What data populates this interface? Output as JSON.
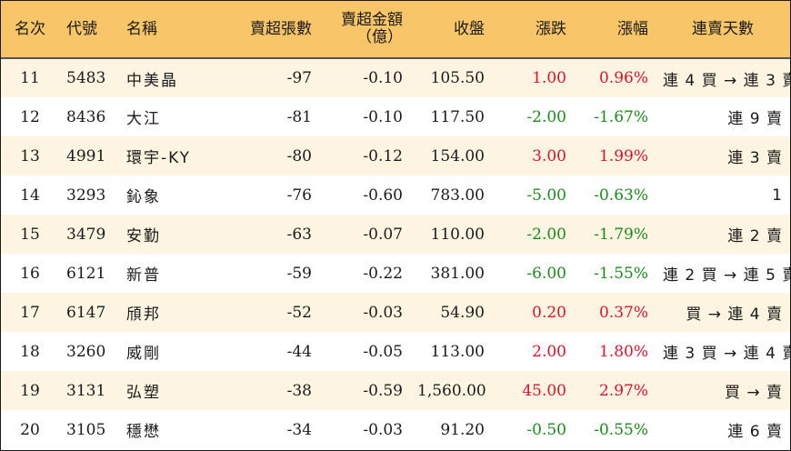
{
  "headers": {
    "rank": "名次",
    "code": "代號",
    "name": "名稱",
    "net_sell_lots": "賣超張數",
    "net_sell_amount_line1": "賣超金額",
    "net_sell_amount_line2": "（億）",
    "close": "收盤",
    "change": "漲跌",
    "change_pct": "漲幅",
    "streak": "連賣天數"
  },
  "colors": {
    "header_bg": "#f8c568",
    "row_alt_bg": "#fdf5e2",
    "up": "#e0102a",
    "down": "#1a8a1a"
  },
  "rows": [
    {
      "rank": "11",
      "code": "5483",
      "name": "中美晶",
      "net_sell_lots": "-97",
      "net_sell_amount": "-0.10",
      "close": "105.50",
      "change": "1.00",
      "change_pct": "0.96%",
      "direction": "up",
      "streak": "連 4 買 → 連 3 賣"
    },
    {
      "rank": "12",
      "code": "8436",
      "name": "大江",
      "net_sell_lots": "-81",
      "net_sell_amount": "-0.10",
      "close": "117.50",
      "change": "-2.00",
      "change_pct": "-1.67%",
      "direction": "down",
      "streak": "連 9 賣"
    },
    {
      "rank": "13",
      "code": "4991",
      "name": "環宇-KY",
      "net_sell_lots": "-80",
      "net_sell_amount": "-0.12",
      "close": "154.00",
      "change": "3.00",
      "change_pct": "1.99%",
      "direction": "up",
      "streak": "連 3 賣"
    },
    {
      "rank": "14",
      "code": "3293",
      "name": "鈊象",
      "net_sell_lots": "-76",
      "net_sell_amount": "-0.60",
      "close": "783.00",
      "change": "-5.00",
      "change_pct": "-0.63%",
      "direction": "down",
      "streak": "1"
    },
    {
      "rank": "15",
      "code": "3479",
      "name": "安勤",
      "net_sell_lots": "-63",
      "net_sell_amount": "-0.07",
      "close": "110.00",
      "change": "-2.00",
      "change_pct": "-1.79%",
      "direction": "down",
      "streak": "連 2 賣"
    },
    {
      "rank": "16",
      "code": "6121",
      "name": "新普",
      "net_sell_lots": "-59",
      "net_sell_amount": "-0.22",
      "close": "381.00",
      "change": "-6.00",
      "change_pct": "-1.55%",
      "direction": "down",
      "streak": "連 2 買 → 連 5 賣"
    },
    {
      "rank": "17",
      "code": "6147",
      "name": "頎邦",
      "net_sell_lots": "-52",
      "net_sell_amount": "-0.03",
      "close": "54.90",
      "change": "0.20",
      "change_pct": "0.37%",
      "direction": "up",
      "streak": "買 → 連 4 賣"
    },
    {
      "rank": "18",
      "code": "3260",
      "name": "威剛",
      "net_sell_lots": "-44",
      "net_sell_amount": "-0.05",
      "close": "113.00",
      "change": "2.00",
      "change_pct": "1.80%",
      "direction": "up",
      "streak": "連 3 買 → 連 4 賣"
    },
    {
      "rank": "19",
      "code": "3131",
      "name": "弘塑",
      "net_sell_lots": "-38",
      "net_sell_amount": "-0.59",
      "close": "1,560.00",
      "change": "45.00",
      "change_pct": "2.97%",
      "direction": "up",
      "streak": "買 → 賣"
    },
    {
      "rank": "20",
      "code": "3105",
      "name": "穩懋",
      "net_sell_lots": "-34",
      "net_sell_amount": "-0.03",
      "close": "91.20",
      "change": "-0.50",
      "change_pct": "-0.55%",
      "direction": "down",
      "streak": "連 6 賣"
    }
  ]
}
